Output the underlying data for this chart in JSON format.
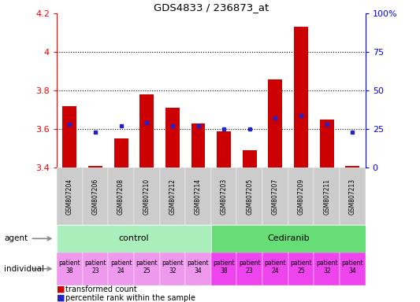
{
  "title": "GDS4833 / 236873_at",
  "samples": [
    "GSM807204",
    "GSM807206",
    "GSM807208",
    "GSM807210",
    "GSM807212",
    "GSM807214",
    "GSM807203",
    "GSM807205",
    "GSM807207",
    "GSM807209",
    "GSM807211",
    "GSM807213"
  ],
  "transformed_count": [
    3.72,
    3.41,
    3.55,
    3.78,
    3.71,
    3.63,
    3.59,
    3.49,
    3.86,
    4.13,
    3.65,
    3.41
  ],
  "percentile_rank": [
    28,
    23,
    27,
    29,
    27,
    27,
    25,
    25,
    32,
    34,
    28,
    23
  ],
  "ymin": 3.4,
  "ymax": 4.2,
  "y_ticks": [
    3.4,
    3.6,
    3.8,
    4.0,
    4.2
  ],
  "y_tick_labels": [
    "3.4",
    "3.6",
    "3.8",
    "4",
    "4.2"
  ],
  "y2min": 0,
  "y2max": 100,
  "y2_ticks": [
    0,
    25,
    50,
    75,
    100
  ],
  "y2_tick_labels": [
    "0",
    "25",
    "50",
    "75",
    "100%"
  ],
  "dotted_lines": [
    3.6,
    3.8,
    4.0
  ],
  "control_group": [
    0,
    1,
    2,
    3,
    4,
    5
  ],
  "cediranib_group": [
    6,
    7,
    8,
    9,
    10,
    11
  ],
  "agent_control_label": "control",
  "agent_cediranib_label": "Cediranib",
  "individuals": [
    "patient\n38",
    "patient\n23",
    "patient\n24",
    "patient\n25",
    "patient\n32",
    "patient\n34",
    "patient\n38",
    "patient\n23",
    "patient\n24",
    "patient\n25",
    "patient\n32",
    "patient\n34"
  ],
  "bar_color": "#cc0000",
  "dot_color": "#2222cc",
  "bar_width": 0.55,
  "sample_bg_color": "#cccccc",
  "control_bg_color": "#aaeebb",
  "cediranib_bg_color": "#66dd77",
  "individual_control_bg": "#ee99ee",
  "individual_cediranib_bg": "#ee44ee",
  "legend_bar_label": "transformed count",
  "legend_dot_label": "percentile rank within the sample",
  "fig_width": 5.33,
  "fig_height": 3.84,
  "fig_dpi": 100
}
